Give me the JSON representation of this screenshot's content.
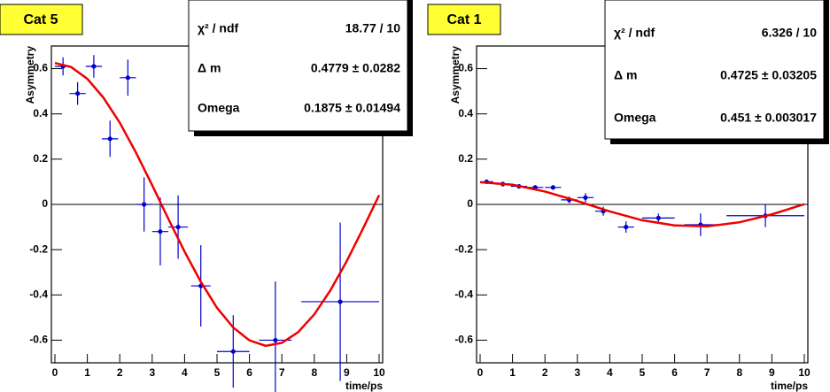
{
  "chart_data": [
    {
      "type": "scatter",
      "label": "Cat 5",
      "xlabel": "time/ps",
      "ylabel": "Asymmetry",
      "xlim": [
        0,
        10
      ],
      "ylim": [
        -0.7,
        0.7
      ],
      "xticks": [
        0,
        1,
        2,
        3,
        4,
        5,
        6,
        7,
        8,
        9,
        10
      ],
      "yticks": [
        -0.6,
        -0.4,
        -0.2,
        0,
        0.2,
        0.4,
        0.6
      ],
      "zero_line": true,
      "points": {
        "color": "#0000cc",
        "x": [
          0.25,
          0.7,
          1.2,
          1.7,
          2.25,
          2.75,
          3.25,
          3.8,
          4.5,
          5.5,
          6.8,
          8.8
        ],
        "values": [
          0.61,
          0.49,
          0.61,
          0.29,
          0.56,
          0.0,
          -0.12,
          -0.1,
          -0.36,
          -0.65,
          -0.6,
          -0.43
        ],
        "xerr": [
          0.25,
          0.25,
          0.25,
          0.25,
          0.25,
          0.25,
          0.25,
          0.3,
          0.3,
          0.5,
          0.5,
          1.2
        ],
        "yerr": [
          0.04,
          0.05,
          0.05,
          0.08,
          0.08,
          0.12,
          0.15,
          0.14,
          0.18,
          0.16,
          0.26,
          0.35
        ]
      },
      "fit": {
        "color": "#ee0000",
        "x": [
          0,
          0.5,
          1,
          1.5,
          2,
          2.5,
          3,
          3.5,
          4,
          4.5,
          5,
          5.5,
          6,
          6.5,
          7,
          7.5,
          8,
          8.5,
          9,
          9.5,
          10
        ],
        "values": [
          0.625,
          0.607,
          0.555,
          0.471,
          0.361,
          0.229,
          0.085,
          -0.064,
          -0.209,
          -0.342,
          -0.457,
          -0.544,
          -0.601,
          -0.625,
          -0.612,
          -0.565,
          -0.486,
          -0.379,
          -0.251,
          -0.108,
          0.041
        ]
      },
      "stats": [
        [
          "χ² / ndf",
          "18.77 / 10"
        ],
        [
          "Δ m",
          "0.4779 ± 0.0282"
        ],
        [
          "Omega",
          "0.1875 ± 0.01494"
        ]
      ]
    },
    {
      "type": "scatter",
      "label": "Cat 1",
      "xlabel": "time/ps",
      "ylabel": "Asymmetry",
      "xlim": [
        0,
        10
      ],
      "ylim": [
        -0.7,
        0.7
      ],
      "xticks": [
        0,
        1,
        2,
        3,
        4,
        5,
        6,
        7,
        8,
        9,
        10
      ],
      "yticks": [
        -0.6,
        -0.4,
        -0.2,
        0,
        0.2,
        0.4,
        0.6
      ],
      "zero_line": true,
      "points": {
        "color": "#0000cc",
        "x": [
          0.2,
          0.7,
          1.2,
          1.7,
          2.25,
          2.75,
          3.25,
          3.8,
          4.5,
          5.5,
          6.8,
          8.8
        ],
        "values": [
          0.1,
          0.09,
          0.08,
          0.075,
          0.075,
          0.02,
          0.03,
          -0.03,
          -0.1,
          -0.06,
          -0.09,
          -0.05
        ],
        "xerr": [
          0.2,
          0.25,
          0.25,
          0.25,
          0.25,
          0.25,
          0.25,
          0.25,
          0.25,
          0.5,
          0.5,
          1.2
        ],
        "yerr": [
          0.01,
          0.01,
          0.01,
          0.01,
          0.01,
          0.015,
          0.02,
          0.02,
          0.025,
          0.02,
          0.05,
          0.05
        ]
      },
      "fit": {
        "color": "#ee0000",
        "x": [
          0,
          1,
          2,
          3,
          4,
          5,
          6,
          7,
          8,
          9,
          10
        ],
        "values": [
          0.098,
          0.087,
          0.057,
          0.015,
          -0.031,
          -0.07,
          -0.093,
          -0.097,
          -0.079,
          -0.044,
          0.001
        ]
      },
      "stats": [
        [
          "χ² / ndf",
          "6.326 / 10"
        ],
        [
          "Δ m",
          "0.4725 ± 0.03205"
        ],
        [
          "Omega",
          "0.451 ± 0.003017"
        ]
      ]
    }
  ]
}
